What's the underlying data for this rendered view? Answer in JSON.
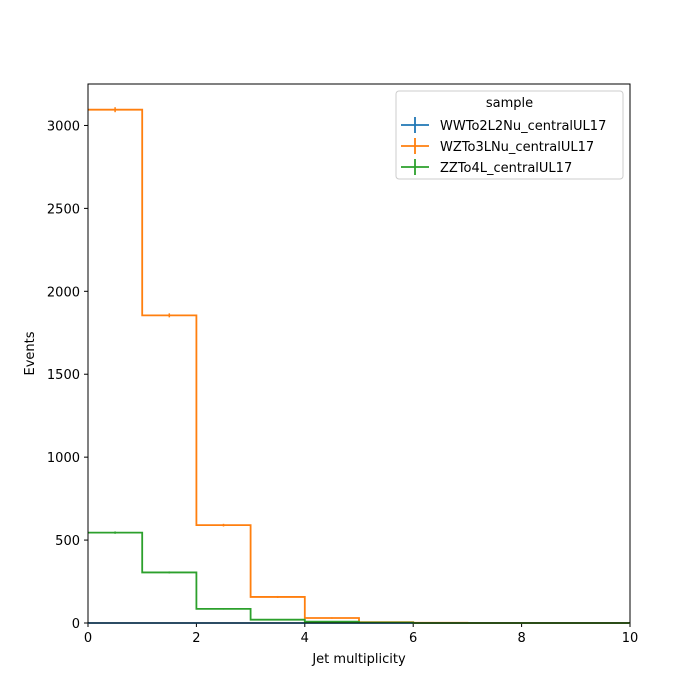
{
  "chart_data": {
    "type": "line",
    "xlabel": "Jet multiplicity",
    "ylabel": "Events",
    "xlim": [
      0,
      10
    ],
    "ylim": [
      0,
      3250
    ],
    "xticks": [
      0,
      2,
      4,
      6,
      8,
      10
    ],
    "yticks": [
      0,
      500,
      1000,
      1500,
      2000,
      2500,
      3000
    ],
    "bin_edges": [
      0,
      1,
      2,
      3,
      4,
      5,
      6,
      7,
      8,
      9,
      10
    ],
    "grid": false,
    "legend": {
      "title": "sample",
      "placement": "top-right"
    },
    "series": [
      {
        "name": "WWTo2L2Nu_centralUL17",
        "color": "#1f77b4",
        "values": [
          0,
          0,
          0,
          0,
          0,
          0,
          0,
          0,
          0,
          0
        ]
      },
      {
        "name": "WZTo3LNu_centralUL17",
        "color": "#ff7f0e",
        "values": [
          3095,
          1855,
          590,
          157,
          30,
          5,
          1,
          0,
          0,
          0
        ],
        "errors": [
          12,
          9,
          5,
          3,
          1,
          0,
          0,
          0,
          0,
          0
        ]
      },
      {
        "name": "ZZTo4L_centralUL17",
        "color": "#2ca02c",
        "values": [
          545,
          305,
          85,
          20,
          8,
          3,
          0,
          0,
          0,
          0
        ],
        "errors": [
          4,
          3,
          1,
          1,
          0,
          0,
          0,
          0,
          0,
          0
        ]
      }
    ]
  }
}
